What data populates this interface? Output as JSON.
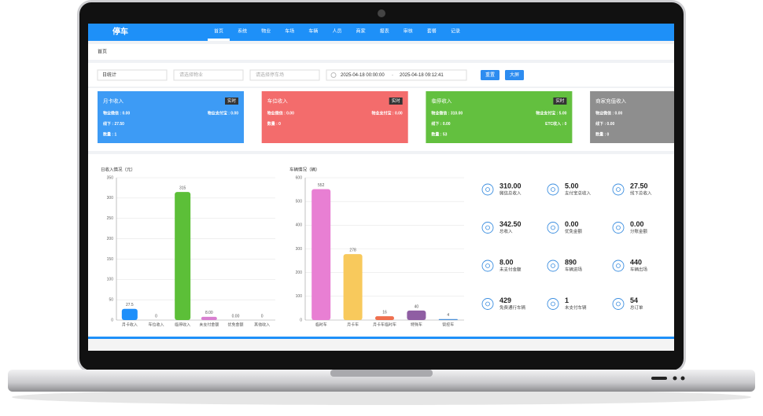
{
  "nav": {
    "logo": "停车",
    "items": [
      "首页",
      "系统",
      "物业",
      "车场",
      "车辆",
      "人员",
      "商家",
      "报表",
      "审核",
      "套餐",
      "记录"
    ]
  },
  "breadcrumb": "首页",
  "filters": {
    "period": "日统计",
    "property": "请选择物业",
    "lot": "请选择停车场",
    "start": "2025-04-18 00:00:00",
    "separator": "-",
    "end": "2025-04-18 09:12:41",
    "buttons": [
      "重置",
      "大屏"
    ]
  },
  "cards": [
    {
      "title": "月卡收入",
      "badge": "实时",
      "color": "#3d9bf5",
      "rows": [
        [
          "物业微信 : 0.00",
          "物业支付宝 : 0.00"
        ],
        [
          "线下 : 27.50"
        ],
        [
          "数量 : 1"
        ]
      ]
    },
    {
      "title": "车位收入",
      "badge": "实时",
      "color": "#f36c6c",
      "rows": [
        [
          "物业微信 : 0.00",
          "物业支付宝 : 0.00"
        ],
        [
          "数量 : 0"
        ]
      ]
    },
    {
      "title": "临停收入",
      "badge": "实时",
      "color": "#63c03f",
      "rows": [
        [
          "物业微信 : 310.00",
          "物业支付宝 : 5.00"
        ],
        [
          "线下 : 0.00",
          "ETC收入 : 0"
        ],
        [
          "数量 : 53"
        ]
      ]
    },
    {
      "title": "商家充值收入",
      "color": "#8e8e8e",
      "rows": [
        [
          "物业微信 : 0.00"
        ],
        [
          "线下 : 0.00"
        ],
        [
          "数量 : 0"
        ]
      ]
    }
  ],
  "income_chart": {
    "type": "bar",
    "title": "日收入情况（元）",
    "categories": [
      "月卡收入",
      "车位收入",
      "临停收入",
      "未支付金额",
      "优免金额",
      "其他收入"
    ],
    "values": [
      27.5,
      0,
      315,
      8,
      0,
      0
    ],
    "value_labels": [
      "27.5",
      "0",
      "315",
      "8.00",
      "0.00",
      "0"
    ],
    "colors": [
      "#1e8ffa",
      "#f36c6c",
      "#5cbf38",
      "#d87fd0",
      "#f0a04b",
      "#999999"
    ],
    "ylim": [
      0,
      350
    ],
    "yticks": [
      0,
      50,
      100,
      150,
      200,
      250,
      300,
      350
    ]
  },
  "vehicle_chart": {
    "type": "bar",
    "title": "车辆情况（辆）",
    "categories": [
      "临时车",
      "月卡车",
      "月卡车临时车",
      "特殊车",
      "管控车"
    ],
    "values": [
      552,
      278,
      16,
      40,
      4
    ],
    "colors": [
      "#e87fd3",
      "#f8c95c",
      "#ef6f4e",
      "#8f5ea3",
      "#4a8fd8"
    ],
    "ylim": [
      0,
      600
    ],
    "yticks": [
      0,
      100,
      200,
      300,
      400,
      500,
      600
    ]
  },
  "stats": [
    {
      "value": "310.00",
      "label": "微信总收入"
    },
    {
      "value": "5.00",
      "label": "支付宝总收入"
    },
    {
      "value": "27.50",
      "label": "线下总收入"
    },
    {
      "value": "342.50",
      "label": "总收入"
    },
    {
      "value": "0.00",
      "label": "优免金额"
    },
    {
      "value": "0.00",
      "label": "分账金额"
    },
    {
      "value": "8.00",
      "label": "未支付金额"
    },
    {
      "value": "890",
      "label": "车辆进场"
    },
    {
      "value": "440",
      "label": "车辆出场"
    },
    {
      "value": "429",
      "label": "免费通行车辆"
    },
    {
      "value": "1",
      "label": "未支付车辆"
    },
    {
      "value": "54",
      "label": "总订单"
    }
  ]
}
